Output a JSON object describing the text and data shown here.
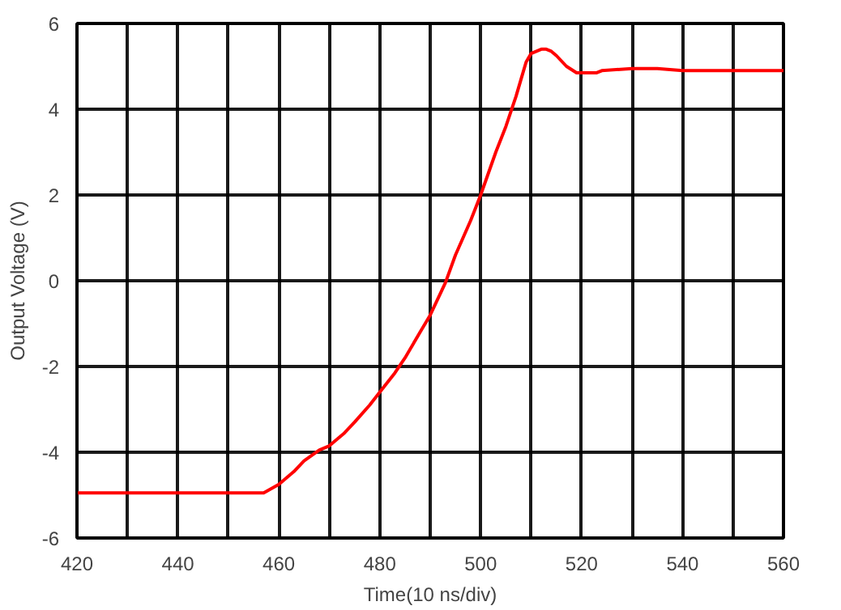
{
  "chart_data": {
    "type": "line",
    "xlabel": "Time(10 ns/div)",
    "ylabel": "Output Voltage (V)",
    "x": [
      420,
      440,
      457,
      460,
      463,
      465,
      468,
      470,
      473,
      475,
      478,
      480,
      483,
      485,
      488,
      490,
      493,
      495,
      498,
      500,
      503,
      505,
      507,
      508,
      509,
      510,
      512,
      513,
      514,
      515,
      517,
      519,
      520,
      523,
      524,
      530,
      535,
      540,
      550,
      560
    ],
    "series": [
      {
        "color": "#ff0000",
        "values": [
          -4.95,
          -4.95,
          -4.95,
          -4.75,
          -4.45,
          -4.2,
          -3.95,
          -3.85,
          -3.55,
          -3.3,
          -2.9,
          -2.6,
          -2.15,
          -1.8,
          -1.2,
          -0.8,
          -0.05,
          0.6,
          1.4,
          2.0,
          3.0,
          3.6,
          4.3,
          4.7,
          5.1,
          5.3,
          5.4,
          5.4,
          5.35,
          5.25,
          5.0,
          4.85,
          4.85,
          4.85,
          4.9,
          4.95,
          4.95,
          4.9,
          4.9,
          4.9
        ]
      }
    ],
    "xlim": [
      420,
      560
    ],
    "ylim": [
      -6,
      6
    ],
    "xticks": [
      420,
      {
        "value": 430,
        "label": null
      },
      440,
      {
        "value": 450,
        "label": null
      },
      460,
      {
        "value": 470,
        "label": null
      },
      480,
      {
        "value": 490,
        "label": null
      },
      500,
      {
        "value": 510,
        "label": null
      },
      520,
      {
        "value": 530,
        "label": null
      },
      540,
      {
        "value": 550,
        "label": null
      },
      560
    ],
    "yticks": [
      -6,
      -4,
      -2,
      0,
      2,
      4,
      6
    ],
    "grid": true,
    "line_style": "solid"
  }
}
